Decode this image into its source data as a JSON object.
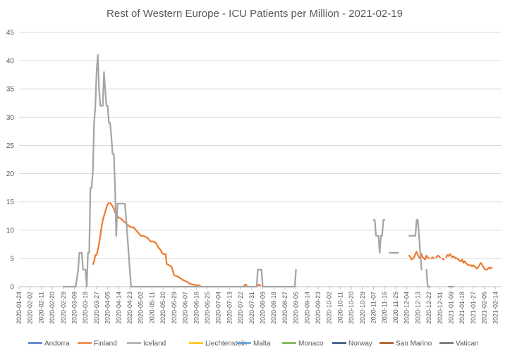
{
  "chart_data": {
    "type": "line",
    "title": "Rest of Western Europe - ICU Patients per Million - 2021-02-19",
    "xlabel": "",
    "ylabel": "",
    "ylim": [
      0,
      45
    ],
    "yticks": [
      0,
      5,
      10,
      15,
      20,
      25,
      30,
      35,
      40,
      45
    ],
    "grid": true,
    "legend_position": "bottom",
    "x_start": "2020-01-24",
    "x_end": "2021-02-19",
    "xticks": [
      "2020-01-24",
      "2020-02-02",
      "2020-02-11",
      "2020-02-20",
      "2020-02-29",
      "2020-03-09",
      "2020-03-18",
      "2020-03-27",
      "2020-04-05",
      "2020-04-14",
      "2020-04-23",
      "2020-05-02",
      "2020-05-11",
      "2020-05-20",
      "2020-05-29",
      "2020-06-07",
      "2020-06-16",
      "2020-06-25",
      "2020-07-04",
      "2020-07-13",
      "2020-07-22",
      "2020-07-31",
      "2020-08-09",
      "2020-08-18",
      "2020-08-27",
      "2020-09-05",
      "2020-09-14",
      "2020-09-23",
      "2020-10-02",
      "2020-10-11",
      "2020-10-20",
      "2020-10-29",
      "2020-11-07",
      "2020-11-16",
      "2020-11-25",
      "2020-12-04",
      "2020-12-13",
      "2020-12-22",
      "2020-12-31",
      "2021-01-09",
      "2021-01-18",
      "2021-01-27",
      "2021-02-05",
      "2021-02-14"
    ],
    "series": [
      {
        "name": "Andorra",
        "color": "#4472C4",
        "points": []
      },
      {
        "name": "Finland",
        "color": "#ED7D31",
        "points": [
          [
            "2020-03-24",
            4
          ],
          [
            "2020-03-25",
            4.5
          ],
          [
            "2020-03-26",
            5.6
          ],
          [
            "2020-03-27",
            5.6
          ],
          [
            "2020-03-28",
            6.5
          ],
          [
            "2020-03-29",
            7.5
          ],
          [
            "2020-03-30",
            9
          ],
          [
            "2020-03-31",
            10.5
          ],
          [
            "2020-04-01",
            11.8
          ],
          [
            "2020-04-02",
            12.5
          ],
          [
            "2020-04-03",
            13.2
          ],
          [
            "2020-04-04",
            14
          ],
          [
            "2020-04-05",
            14.6
          ],
          [
            "2020-04-06",
            14.8
          ],
          [
            "2020-04-07",
            14.8
          ],
          [
            "2020-04-08",
            14.6
          ],
          [
            "2020-04-09",
            14.2
          ],
          [
            "2020-04-10",
            13.8
          ],
          [
            "2020-04-11",
            13.2
          ],
          [
            "2020-04-12",
            12.8
          ],
          [
            "2020-04-13",
            12.5
          ],
          [
            "2020-04-14",
            12.2
          ],
          [
            "2020-04-16",
            12
          ],
          [
            "2020-04-18",
            11.6
          ],
          [
            "2020-04-20",
            11.2
          ],
          [
            "2020-04-22",
            10.8
          ],
          [
            "2020-04-24",
            10.5
          ],
          [
            "2020-04-26",
            10.5
          ],
          [
            "2020-04-28",
            10
          ],
          [
            "2020-04-30",
            9.5
          ],
          [
            "2020-05-02",
            9
          ],
          [
            "2020-05-04",
            9
          ],
          [
            "2020-05-06",
            8.8
          ],
          [
            "2020-05-08",
            8.5
          ],
          [
            "2020-05-09",
            8.2
          ],
          [
            "2020-05-10",
            8
          ],
          [
            "2020-05-12",
            8
          ],
          [
            "2020-05-14",
            7.8
          ],
          [
            "2020-05-16",
            7
          ],
          [
            "2020-05-18",
            6.5
          ],
          [
            "2020-05-19",
            6
          ],
          [
            "2020-05-20",
            5.8
          ],
          [
            "2020-05-22",
            5.8
          ],
          [
            "2020-05-23",
            4
          ],
          [
            "2020-05-25",
            3.8
          ],
          [
            "2020-05-27",
            3.5
          ],
          [
            "2020-05-29",
            2
          ],
          [
            "2020-06-01",
            1.8
          ],
          [
            "2020-06-03",
            1.5
          ],
          [
            "2020-06-05",
            1.2
          ],
          [
            "2020-06-07",
            1
          ],
          [
            "2020-06-09",
            0.8
          ],
          [
            "2020-06-11",
            0.5
          ],
          [
            "2020-06-13",
            0.4
          ],
          [
            "2020-06-15",
            0.3
          ],
          [
            "2020-06-16",
            0.2
          ],
          [
            "2020-06-17",
            0.3
          ],
          [
            "2020-06-18",
            0.2
          ],
          [
            "2020-06-19",
            0.2
          ],
          null,
          [
            "2020-07-25",
            0.2
          ],
          [
            "2020-07-26",
            0.4
          ],
          [
            "2020-07-27",
            0.2
          ],
          null,
          [
            "2020-08-05",
            0.2
          ],
          [
            "2020-08-06",
            0.4
          ],
          [
            "2020-08-07",
            0.2
          ],
          null,
          [
            "2020-12-06",
            5.5
          ],
          [
            "2020-12-07",
            5.2
          ],
          [
            "2020-12-08",
            4.8
          ],
          [
            "2020-12-09",
            5
          ],
          [
            "2020-12-10",
            5.2
          ],
          [
            "2020-12-11",
            5.8
          ],
          [
            "2020-12-12",
            6.2
          ],
          [
            "2020-12-13",
            5.6
          ],
          [
            "2020-12-14",
            5.2
          ],
          [
            "2020-12-15",
            5
          ],
          [
            "2020-12-16",
            5.8
          ],
          [
            "2020-12-17",
            5.2
          ],
          [
            "2020-12-18",
            5
          ],
          [
            "2020-12-19",
            4.8
          ],
          [
            "2020-12-20",
            5.5
          ],
          [
            "2020-12-21",
            5.2
          ],
          [
            "2020-12-22",
            5
          ],
          null,
          [
            "2020-12-24",
            5
          ],
          [
            "2020-12-25",
            5.2
          ],
          [
            "2020-12-26",
            5
          ],
          null,
          [
            "2020-12-28",
            5.2
          ],
          [
            "2020-12-29",
            5.5
          ],
          [
            "2020-12-30",
            5.4
          ],
          [
            "2020-12-31",
            5.2
          ],
          null,
          [
            "2021-01-02",
            5
          ],
          [
            "2021-01-03",
            4.8
          ],
          null,
          [
            "2021-01-05",
            5.2
          ],
          [
            "2021-01-06",
            5.6
          ],
          [
            "2021-01-07",
            5.4
          ],
          [
            "2021-01-08",
            5.8
          ],
          [
            "2021-01-09",
            5.5
          ],
          [
            "2021-01-10",
            5.2
          ],
          [
            "2021-01-11",
            5.4
          ],
          [
            "2021-01-12",
            5.2
          ],
          [
            "2021-01-13",
            5
          ],
          [
            "2021-01-14",
            5
          ],
          [
            "2021-01-15",
            4.8
          ],
          [
            "2021-01-16",
            4.6
          ],
          [
            "2021-01-17",
            4.5
          ],
          [
            "2021-01-18",
            4.8
          ],
          [
            "2021-01-19",
            4.2
          ],
          [
            "2021-01-20",
            4.5
          ],
          [
            "2021-01-21",
            4.2
          ],
          [
            "2021-01-22",
            4
          ],
          [
            "2021-01-23",
            3.8
          ],
          [
            "2021-01-24",
            3.8
          ],
          [
            "2021-01-25",
            3.8
          ],
          [
            "2021-01-26",
            3.6
          ],
          [
            "2021-01-27",
            3.8
          ],
          [
            "2021-01-28",
            3.6
          ],
          [
            "2021-01-29",
            3.4
          ],
          [
            "2021-01-30",
            3.2
          ],
          [
            "2021-01-31",
            3.4
          ],
          [
            "2021-02-01",
            3.8
          ],
          [
            "2021-02-02",
            4.2
          ],
          [
            "2021-02-03",
            4
          ],
          [
            "2021-02-04",
            3.6
          ],
          [
            "2021-02-05",
            3.2
          ],
          [
            "2021-02-06",
            3
          ],
          [
            "2021-02-07",
            3
          ],
          [
            "2021-02-08",
            3.2
          ],
          [
            "2021-02-09",
            3.4
          ],
          [
            "2021-02-10",
            3.2
          ],
          [
            "2021-02-11",
            3.4
          ]
        ]
      },
      {
        "name": "Iceland",
        "color": "#A5A5A5",
        "points": [
          [
            "2020-02-29",
            0
          ],
          [
            "2020-03-10",
            0
          ],
          [
            "2020-03-12",
            3
          ],
          [
            "2020-03-13",
            6
          ],
          [
            "2020-03-15",
            6
          ],
          [
            "2020-03-16",
            3
          ],
          [
            "2020-03-18",
            3
          ],
          [
            "2020-03-19",
            0
          ],
          [
            "2020-03-20",
            6
          ],
          [
            "2020-03-21",
            6
          ],
          [
            "2020-03-22",
            17.5
          ],
          [
            "2020-03-23",
            17.5
          ],
          [
            "2020-03-24",
            20.5
          ],
          [
            "2020-03-25",
            29
          ],
          [
            "2020-03-26",
            32
          ],
          [
            "2020-03-27",
            38
          ],
          [
            "2020-03-28",
            41
          ],
          [
            "2020-03-29",
            35
          ],
          [
            "2020-03-30",
            32
          ],
          [
            "2020-03-31",
            32
          ],
          [
            "2020-04-01",
            32
          ],
          [
            "2020-04-02",
            38
          ],
          [
            "2020-04-03",
            35
          ],
          [
            "2020-04-04",
            32
          ],
          [
            "2020-04-05",
            32
          ],
          [
            "2020-04-06",
            29
          ],
          [
            "2020-04-07",
            29
          ],
          [
            "2020-04-08",
            26.5
          ],
          [
            "2020-04-09",
            23.5
          ],
          [
            "2020-04-10",
            23.5
          ],
          [
            "2020-04-11",
            17.5
          ],
          [
            "2020-04-12",
            9
          ],
          [
            "2020-04-13",
            14.7
          ],
          [
            "2020-04-14",
            14.7
          ],
          [
            "2020-04-15",
            14.7
          ],
          [
            "2020-04-16",
            14.7
          ],
          [
            "2020-04-17",
            14.7
          ],
          [
            "2020-04-18",
            14.7
          ],
          [
            "2020-04-19",
            14.7
          ],
          [
            "2020-04-20",
            12
          ],
          [
            "2020-04-21",
            9
          ],
          [
            "2020-04-22",
            6
          ],
          [
            "2020-04-23",
            3
          ],
          [
            "2020-04-24",
            0
          ],
          [
            "2020-08-04",
            0
          ],
          [
            "2020-08-05",
            3
          ],
          [
            "2020-08-07",
            3
          ],
          [
            "2020-08-08",
            3
          ],
          [
            "2020-08-09",
            0
          ],
          [
            "2020-09-04",
            0
          ],
          [
            "2020-09-05",
            3
          ]
        ]
      },
      {
        "name": "Iceland",
        "color": "#A5A5A5",
        "points": [
          [
            "2020-11-07",
            11.8
          ],
          [
            "2020-11-08",
            11.8
          ],
          [
            "2020-11-09",
            9
          ],
          [
            "2020-11-10",
            9
          ],
          [
            "2020-11-11",
            9
          ],
          [
            "2020-11-12",
            6
          ],
          [
            "2020-11-13",
            9
          ],
          [
            "2020-11-14",
            9
          ],
          [
            "2020-11-15",
            11.8
          ],
          [
            "2020-11-16",
            11.8
          ]
        ]
      },
      {
        "name": "Iceland",
        "color": "#A5A5A5",
        "points": [
          [
            "2020-11-20",
            6
          ],
          [
            "2020-11-21",
            6
          ],
          [
            "2020-11-22",
            6
          ],
          [
            "2020-11-23",
            6
          ],
          [
            "2020-11-24",
            6
          ],
          [
            "2020-11-25",
            6
          ],
          [
            "2020-11-26",
            6
          ],
          [
            "2020-11-27",
            6
          ],
          null,
          [
            "2020-12-06",
            9
          ],
          [
            "2020-12-07",
            9
          ],
          [
            "2020-12-08",
            9
          ],
          [
            "2020-12-09",
            9
          ],
          [
            "2020-12-10",
            9
          ],
          [
            "2020-12-11",
            9
          ],
          [
            "2020-12-12",
            11.8
          ],
          [
            "2020-12-13",
            11.8
          ],
          [
            "2020-12-14",
            9
          ],
          [
            "2020-12-15",
            6
          ],
          [
            "2020-12-16",
            3
          ],
          null,
          [
            "2020-12-20",
            3
          ],
          [
            "2020-12-21",
            0
          ],
          [
            "2020-12-22",
            0
          ],
          [
            "2020-12-23",
            0
          ],
          null,
          [
            "2021-01-07",
            0
          ],
          [
            "2021-01-08",
            0
          ],
          [
            "2021-01-09",
            0
          ],
          [
            "2021-01-10",
            0
          ],
          [
            "2021-01-11",
            0
          ]
        ]
      },
      {
        "name": "Liechtenstein",
        "color": "#FFC000",
        "points": []
      },
      {
        "name": "Malta",
        "color": "#5B9BD5",
        "points": []
      },
      {
        "name": "Monaco",
        "color": "#70AD47",
        "points": []
      },
      {
        "name": "Norway",
        "color": "#264478",
        "points": []
      },
      {
        "name": "San Marino",
        "color": "#9E480E",
        "points": []
      },
      {
        "name": "Vatican",
        "color": "#636363",
        "points": []
      }
    ],
    "legend": [
      {
        "name": "Andorra",
        "color": "#4472C4"
      },
      {
        "name": "Finland",
        "color": "#ED7D31"
      },
      {
        "name": "Iceland",
        "color": "#A5A5A5"
      },
      {
        "name": "Liechtenstein",
        "color": "#FFC000"
      },
      {
        "name": "Malta",
        "color": "#5B9BD5"
      },
      {
        "name": "Monaco",
        "color": "#70AD47"
      },
      {
        "name": "Norway",
        "color": "#264478"
      },
      {
        "name": "San Marino",
        "color": "#9E480E"
      },
      {
        "name": "Vatican",
        "color": "#636363"
      }
    ]
  }
}
